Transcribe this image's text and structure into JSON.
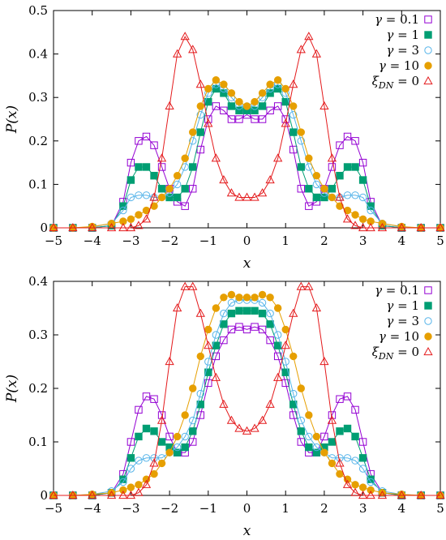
{
  "chart_data": [
    {
      "type": "line",
      "xlabel": "x",
      "ylabel": "P(x)",
      "xlim": [
        -5,
        5
      ],
      "ylim": [
        0,
        0.5
      ],
      "xticks": [
        "−5",
        "−4",
        "−3",
        "−2",
        "−1",
        "0",
        "1",
        "2",
        "3",
        "4",
        "5"
      ],
      "yticks": [
        "0",
        "0.1",
        "0.2",
        "0.3",
        "0.4",
        "0.5"
      ],
      "legend_position": "top-right",
      "x": [
        -5,
        -4.5,
        -4,
        -3.5,
        -3.2,
        -3,
        -2.8,
        -2.6,
        -2.4,
        -2.2,
        -2,
        -1.8,
        -1.6,
        -1.4,
        -1.2,
        -1,
        -0.8,
        -0.6,
        -0.4,
        -0.2,
        0,
        0.2,
        0.4,
        0.6,
        0.8,
        1,
        1.2,
        1.4,
        1.6,
        1.8,
        2,
        2.2,
        2.4,
        2.6,
        2.8,
        3,
        3.2,
        3.5,
        4,
        4.5,
        5
      ],
      "series": [
        {
          "name": "γ = 0.1",
          "color": "#9400d3",
          "marker": "square-open",
          "values": [
            0,
            0,
            0,
            0.005,
            0.06,
            0.15,
            0.2,
            0.21,
            0.19,
            0.14,
            0.09,
            0.06,
            0.05,
            0.09,
            0.18,
            0.25,
            0.28,
            0.27,
            0.25,
            0.25,
            0.26,
            0.25,
            0.25,
            0.27,
            0.28,
            0.25,
            0.18,
            0.09,
            0.05,
            0.06,
            0.09,
            0.14,
            0.19,
            0.21,
            0.2,
            0.15,
            0.06,
            0.005,
            0,
            0,
            0
          ]
        },
        {
          "name": "γ = 1",
          "color": "#009e73",
          "marker": "square-filled",
          "values": [
            0,
            0,
            0,
            0.005,
            0.05,
            0.11,
            0.14,
            0.14,
            0.12,
            0.09,
            0.07,
            0.07,
            0.09,
            0.14,
            0.22,
            0.29,
            0.32,
            0.31,
            0.28,
            0.27,
            0.27,
            0.27,
            0.28,
            0.31,
            0.32,
            0.29,
            0.22,
            0.14,
            0.09,
            0.07,
            0.07,
            0.09,
            0.12,
            0.14,
            0.14,
            0.11,
            0.05,
            0.005,
            0,
            0,
            0
          ]
        },
        {
          "name": "γ = 3",
          "color": "#56b4e9",
          "marker": "circle-open",
          "values": [
            0,
            0,
            0.002,
            0.01,
            0.04,
            0.07,
            0.075,
            0.075,
            0.07,
            0.07,
            0.08,
            0.1,
            0.14,
            0.2,
            0.26,
            0.31,
            0.33,
            0.32,
            0.3,
            0.28,
            0.28,
            0.28,
            0.3,
            0.32,
            0.33,
            0.31,
            0.26,
            0.2,
            0.14,
            0.1,
            0.08,
            0.07,
            0.07,
            0.075,
            0.075,
            0.07,
            0.04,
            0.01,
            0.002,
            0,
            0
          ]
        },
        {
          "name": "γ = 10",
          "color": "#e69f00",
          "marker": "circle-filled",
          "values": [
            0,
            0,
            0.003,
            0.01,
            0.015,
            0.02,
            0.03,
            0.04,
            0.05,
            0.07,
            0.09,
            0.12,
            0.16,
            0.22,
            0.28,
            0.32,
            0.34,
            0.33,
            0.31,
            0.29,
            0.28,
            0.29,
            0.31,
            0.33,
            0.34,
            0.32,
            0.28,
            0.22,
            0.16,
            0.12,
            0.09,
            0.07,
            0.05,
            0.04,
            0.03,
            0.02,
            0.015,
            0.01,
            0.003,
            0,
            0
          ]
        },
        {
          "name": "ξ_DN = 0",
          "color": "#e41a1c",
          "marker": "triangle-open",
          "values": [
            0,
            0,
            0,
            0,
            0,
            0,
            0.005,
            0.02,
            0.07,
            0.16,
            0.28,
            0.4,
            0.44,
            0.41,
            0.33,
            0.24,
            0.16,
            0.11,
            0.08,
            0.07,
            0.07,
            0.07,
            0.08,
            0.11,
            0.16,
            0.24,
            0.33,
            0.41,
            0.44,
            0.4,
            0.28,
            0.16,
            0.07,
            0.02,
            0.005,
            0,
            0,
            0,
            0,
            0,
            0
          ]
        }
      ]
    },
    {
      "type": "line",
      "xlabel": "x",
      "ylabel": "P(x)",
      "xlim": [
        -5,
        5
      ],
      "ylim": [
        0,
        0.4
      ],
      "xticks": [
        "−5",
        "−4",
        "−3",
        "−2",
        "−1",
        "0",
        "1",
        "2",
        "3",
        "4",
        "5"
      ],
      "yticks": [
        "0",
        "0.1",
        "0.2",
        "0.3",
        "0.4"
      ],
      "legend_position": "top-right",
      "x": [
        -5,
        -4.5,
        -4,
        -3.5,
        -3.2,
        -3,
        -2.8,
        -2.6,
        -2.4,
        -2.2,
        -2,
        -1.8,
        -1.6,
        -1.4,
        -1.2,
        -1,
        -0.8,
        -0.6,
        -0.4,
        -0.2,
        0,
        0.2,
        0.4,
        0.6,
        0.8,
        1,
        1.2,
        1.4,
        1.6,
        1.8,
        2,
        2.2,
        2.4,
        2.6,
        2.8,
        3,
        3.2,
        3.5,
        4,
        4.5,
        5
      ],
      "series": [
        {
          "name": "γ = 0.1",
          "color": "#9400d3",
          "marker": "square-open",
          "values": [
            0,
            0,
            0,
            0.005,
            0.04,
            0.1,
            0.16,
            0.185,
            0.18,
            0.15,
            0.11,
            0.08,
            0.08,
            0.1,
            0.15,
            0.21,
            0.26,
            0.29,
            0.31,
            0.315,
            0.31,
            0.315,
            0.31,
            0.29,
            0.26,
            0.21,
            0.15,
            0.1,
            0.08,
            0.08,
            0.11,
            0.15,
            0.18,
            0.185,
            0.16,
            0.1,
            0.04,
            0.005,
            0,
            0,
            0
          ]
        },
        {
          "name": "γ = 1",
          "color": "#009e73",
          "marker": "square-filled",
          "values": [
            0,
            0,
            0,
            0.005,
            0.03,
            0.07,
            0.11,
            0.125,
            0.12,
            0.1,
            0.09,
            0.08,
            0.09,
            0.12,
            0.17,
            0.23,
            0.28,
            0.32,
            0.34,
            0.345,
            0.345,
            0.345,
            0.34,
            0.32,
            0.28,
            0.23,
            0.17,
            0.12,
            0.09,
            0.08,
            0.09,
            0.1,
            0.12,
            0.125,
            0.11,
            0.07,
            0.03,
            0.005,
            0,
            0,
            0
          ]
        },
        {
          "name": "γ = 3",
          "color": "#56b4e9",
          "marker": "circle-open",
          "values": [
            0,
            0,
            0.002,
            0.008,
            0.025,
            0.05,
            0.065,
            0.07,
            0.07,
            0.07,
            0.08,
            0.09,
            0.11,
            0.14,
            0.19,
            0.25,
            0.3,
            0.34,
            0.36,
            0.365,
            0.365,
            0.365,
            0.36,
            0.34,
            0.3,
            0.25,
            0.19,
            0.14,
            0.11,
            0.09,
            0.08,
            0.07,
            0.07,
            0.07,
            0.065,
            0.05,
            0.025,
            0.008,
            0.002,
            0,
            0
          ]
        },
        {
          "name": "γ = 10",
          "color": "#e69f00",
          "marker": "circle-filled",
          "values": [
            0,
            0,
            0.002,
            0.005,
            0.01,
            0.015,
            0.02,
            0.03,
            0.04,
            0.06,
            0.08,
            0.11,
            0.15,
            0.2,
            0.26,
            0.31,
            0.35,
            0.37,
            0.375,
            0.37,
            0.37,
            0.37,
            0.375,
            0.37,
            0.35,
            0.31,
            0.26,
            0.2,
            0.15,
            0.11,
            0.08,
            0.06,
            0.04,
            0.03,
            0.02,
            0.015,
            0.01,
            0.005,
            0.002,
            0,
            0
          ]
        },
        {
          "name": "ξ_DN = 0",
          "color": "#e41a1c",
          "marker": "triangle-open",
          "values": [
            0,
            0,
            0,
            0,
            0,
            0,
            0.005,
            0.02,
            0.06,
            0.14,
            0.25,
            0.35,
            0.39,
            0.39,
            0.34,
            0.28,
            0.22,
            0.17,
            0.14,
            0.125,
            0.12,
            0.125,
            0.14,
            0.17,
            0.22,
            0.28,
            0.34,
            0.39,
            0.39,
            0.35,
            0.25,
            0.14,
            0.06,
            0.02,
            0.005,
            0,
            0,
            0,
            0,
            0,
            0
          ]
        }
      ]
    }
  ]
}
